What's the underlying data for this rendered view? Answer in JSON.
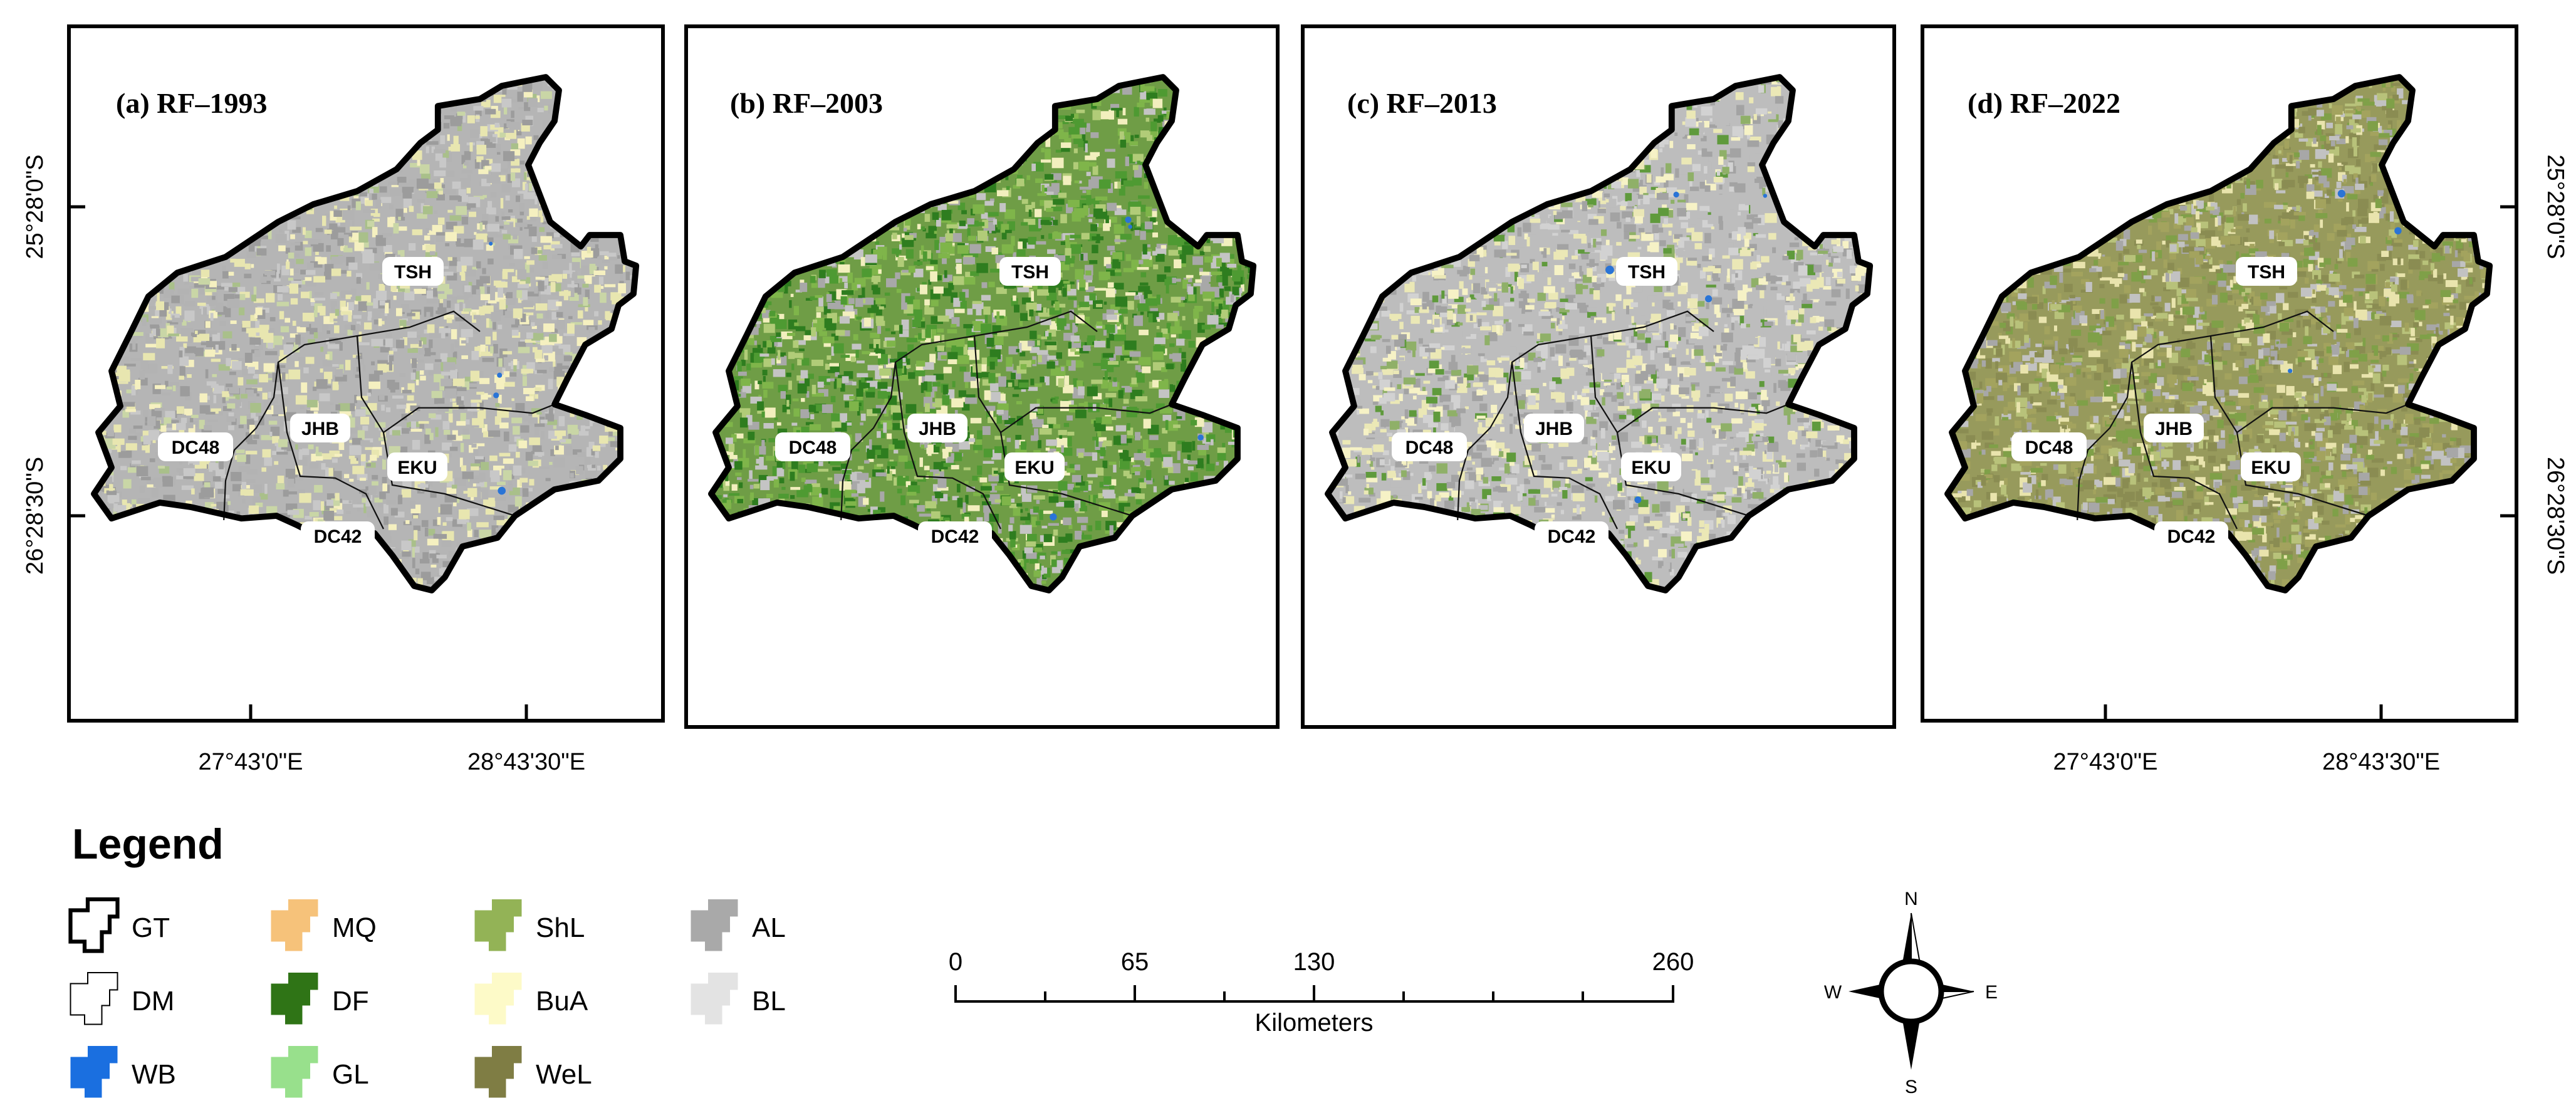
{
  "panels": [
    {
      "id": "a",
      "title": "(a) RF–1993",
      "left_ticks": true,
      "right_ticks": false,
      "bottom_ticks": true,
      "palette": [
        "#9c9c9c",
        "#b3b3b3",
        "#c8c8c8",
        "#e8e6b0",
        "#f5f0c0",
        "#c9d6a6",
        "#a9c08a"
      ],
      "weights": [
        14,
        12,
        10,
        10,
        6,
        6,
        3
      ]
    },
    {
      "id": "b",
      "title": "(b) RF–2003",
      "left_ticks": false,
      "right_ticks": false,
      "bottom_ticks": false,
      "palette": [
        "#2e7d1f",
        "#4e9a32",
        "#7fb54a",
        "#b1cc78",
        "#f2efbe",
        "#a8a8a8",
        "#c4c4c4"
      ],
      "weights": [
        12,
        12,
        10,
        8,
        6,
        9,
        7
      ]
    },
    {
      "id": "c",
      "title": "(c) RF–2013",
      "left_ticks": false,
      "right_ticks": false,
      "bottom_ticks": false,
      "palette": [
        "#a3a3a3",
        "#bdbdbd",
        "#d2d2d2",
        "#ebe8b6",
        "#f6f2c6",
        "#8fb068",
        "#5f9a3c"
      ],
      "weights": [
        13,
        12,
        9,
        11,
        7,
        5,
        3
      ]
    },
    {
      "id": "d",
      "title": "(d) RF–2022",
      "left_ticks": false,
      "right_ticks": true,
      "bottom_ticks": true,
      "palette": [
        "#8a8c52",
        "#a3a35e",
        "#7fa048",
        "#b8c27a",
        "#e9e4ad",
        "#a7a7a7",
        "#c2c2c2"
      ],
      "weights": [
        12,
        10,
        9,
        9,
        7,
        7,
        6
      ]
    }
  ],
  "districts": [
    "TSH",
    "JHB",
    "EKU",
    "DC48",
    "DC42"
  ],
  "lat_labels": [
    "25°28'0\"S",
    "26°28'30\"S"
  ],
  "lon_labels": [
    "27°43'0\"E",
    "28°43'30\"E"
  ],
  "legend": {
    "title": "Legend",
    "items": [
      {
        "code": "GT",
        "kind": "outline-thick",
        "color": "#000000"
      },
      {
        "code": "DM",
        "kind": "outline-thin",
        "color": "#000000"
      },
      {
        "code": "WB",
        "kind": "fill",
        "color": "#1a6fe0"
      },
      {
        "code": "MQ",
        "kind": "fill",
        "color": "#f6c27a"
      },
      {
        "code": "DF",
        "kind": "fill",
        "color": "#2f7416"
      },
      {
        "code": "GL",
        "kind": "fill",
        "color": "#98e08c"
      },
      {
        "code": "ShL",
        "kind": "fill",
        "color": "#93b356"
      },
      {
        "code": "BuA",
        "kind": "fill",
        "color": "#fdfac8"
      },
      {
        "code": "WeL",
        "kind": "fill",
        "color": "#7f7d44"
      },
      {
        "code": "AL",
        "kind": "fill",
        "color": "#a9a9a9"
      },
      {
        "code": "BL",
        "kind": "fill",
        "color": "#e3e3e3"
      }
    ]
  },
  "scale_bar": {
    "ticks": [
      "0",
      "65",
      "130",
      "260"
    ],
    "unit": "Kilometers"
  },
  "compass": {
    "n": "N",
    "e": "E",
    "s": "S",
    "w": "W"
  }
}
